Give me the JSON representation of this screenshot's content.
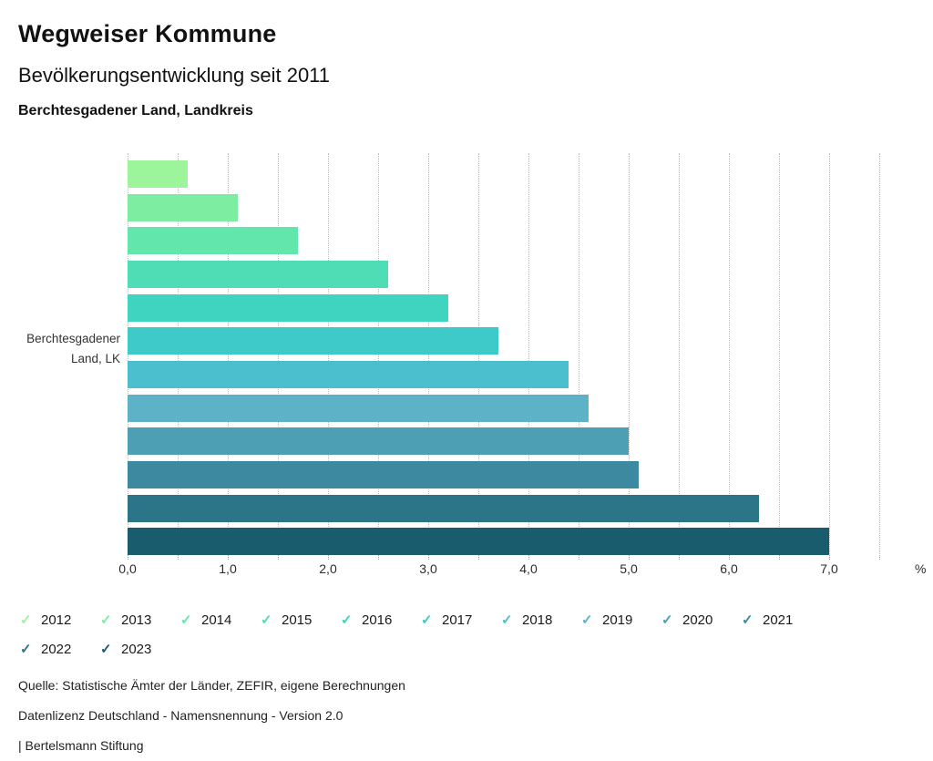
{
  "header": {
    "title": "Wegweiser Kommune",
    "subtitle": "Bevölkerungsentwicklung seit 2011",
    "region": "Berchtesgadener Land, Landkreis"
  },
  "chart_data": {
    "type": "bar",
    "orientation": "horizontal",
    "title": "Bevölkerungsentwicklung seit 2011",
    "category": "Berchtesgadener Land, LK",
    "category_lines": [
      "Berchtesgadener",
      "Land, LK"
    ],
    "unit": "%",
    "xlim": [
      0,
      7.5
    ],
    "grid_step": 0.5,
    "x_ticks": [
      "0,0",
      "1,0",
      "2,0",
      "3,0",
      "4,0",
      "5,0",
      "6,0",
      "7,0"
    ],
    "grid": true,
    "legend_position": "bottom",
    "series": [
      {
        "year": "2012",
        "value": 0.6,
        "color": "#9cf49b"
      },
      {
        "year": "2013",
        "value": 1.1,
        "color": "#7deda1"
      },
      {
        "year": "2014",
        "value": 1.7,
        "color": "#63e6ab"
      },
      {
        "year": "2015",
        "value": 2.6,
        "color": "#4eddb4"
      },
      {
        "year": "2016",
        "value": 3.2,
        "color": "#3fd4c0"
      },
      {
        "year": "2017",
        "value": 3.7,
        "color": "#3dcac9"
      },
      {
        "year": "2018",
        "value": 4.4,
        "color": "#4bbfce"
      },
      {
        "year": "2019",
        "value": 4.6,
        "color": "#5db2c8"
      },
      {
        "year": "2020",
        "value": 5.0,
        "color": "#4d9fb4"
      },
      {
        "year": "2021",
        "value": 5.1,
        "color": "#3d8aa0"
      },
      {
        "year": "2022",
        "value": 6.3,
        "color": "#2c7488"
      },
      {
        "year": "2023",
        "value": 7.0,
        "color": "#185c6d"
      }
    ]
  },
  "legend": {
    "check_glyph": "✓",
    "items_per_row": 10
  },
  "footer": {
    "lines": [
      "Quelle: Statistische Ämter der Länder, ZEFIR, eigene Berechnungen",
      "Datenlizenz Deutschland - Namensnennung - Version 2.0",
      "| Bertelsmann Stiftung"
    ]
  }
}
